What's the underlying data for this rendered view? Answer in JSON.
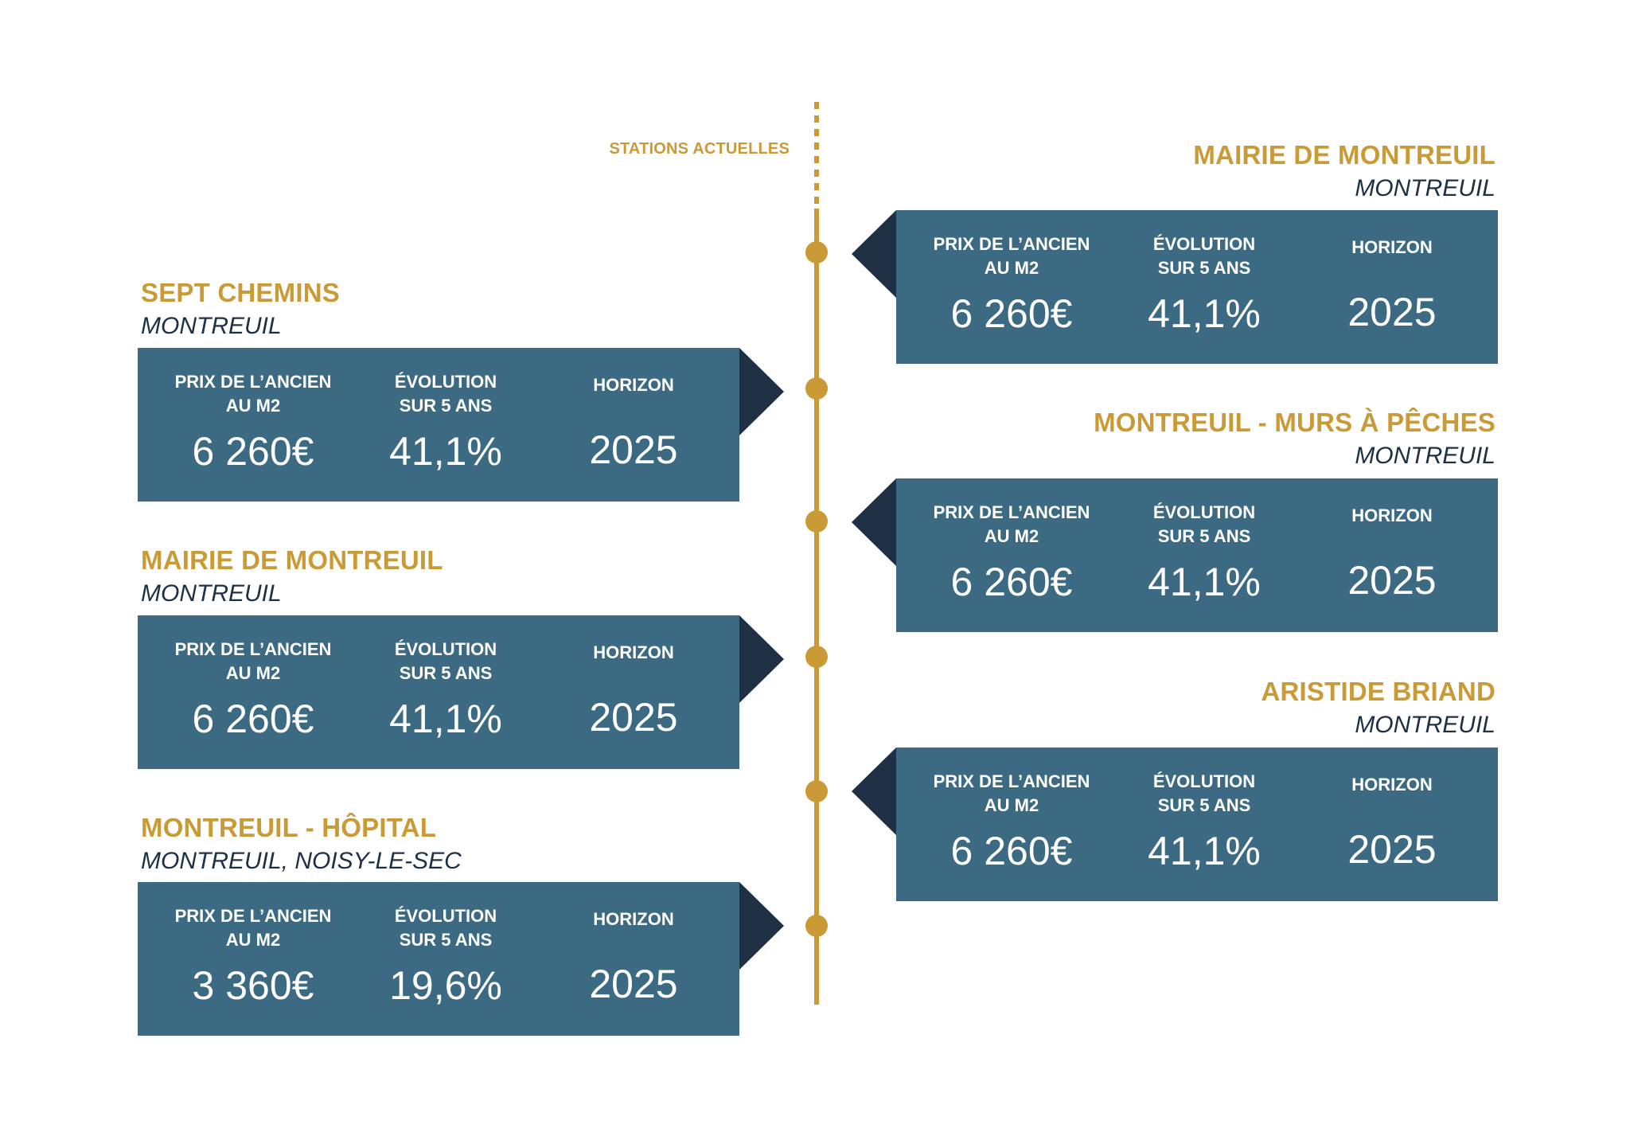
{
  "line_label": "STATIONS ACTUELLES",
  "labels": {
    "prix_line1": "PRIX DE L’ANCIEN",
    "prix_line2": "AU M2",
    "evol_line1": "ÉVOLUTION",
    "evol_line2": "SUR 5 ANS",
    "horizon": "HORIZON"
  },
  "stations": [
    {
      "name": "MAIRIE DE MONTREUIL",
      "city": "MONTREUIL",
      "price": "6 260€",
      "evolution": "41,1%",
      "horizon": "2025"
    },
    {
      "name": "SEPT CHEMINS",
      "city": "MONTREUIL",
      "price": "6 260€",
      "evolution": "41,1%",
      "horizon": "2025"
    },
    {
      "name": "MONTREUIL - MURS À PÊCHES",
      "city": "MONTREUIL",
      "price": "6 260€",
      "evolution": "41,1%",
      "horizon": "2025"
    },
    {
      "name": "MAIRIE DE MONTREUIL",
      "city": "MONTREUIL",
      "price": "6 260€",
      "evolution": "41,1%",
      "horizon": "2025"
    },
    {
      "name": "ARISTIDE BRIAND",
      "city": "MONTREUIL",
      "price": "6 260€",
      "evolution": "41,1%",
      "horizon": "2025"
    },
    {
      "name": "MONTREUIL - HÔPITAL",
      "city": "MONTREUIL, NOISY-LE-SEC",
      "price": "3 360€",
      "evolution": "19,6%",
      "horizon": "2025"
    }
  ],
  "colors": {
    "gold": "#c99a35",
    "box": "#3c6a82",
    "arrow": "#1f3044",
    "city_text": "#1f3044"
  }
}
